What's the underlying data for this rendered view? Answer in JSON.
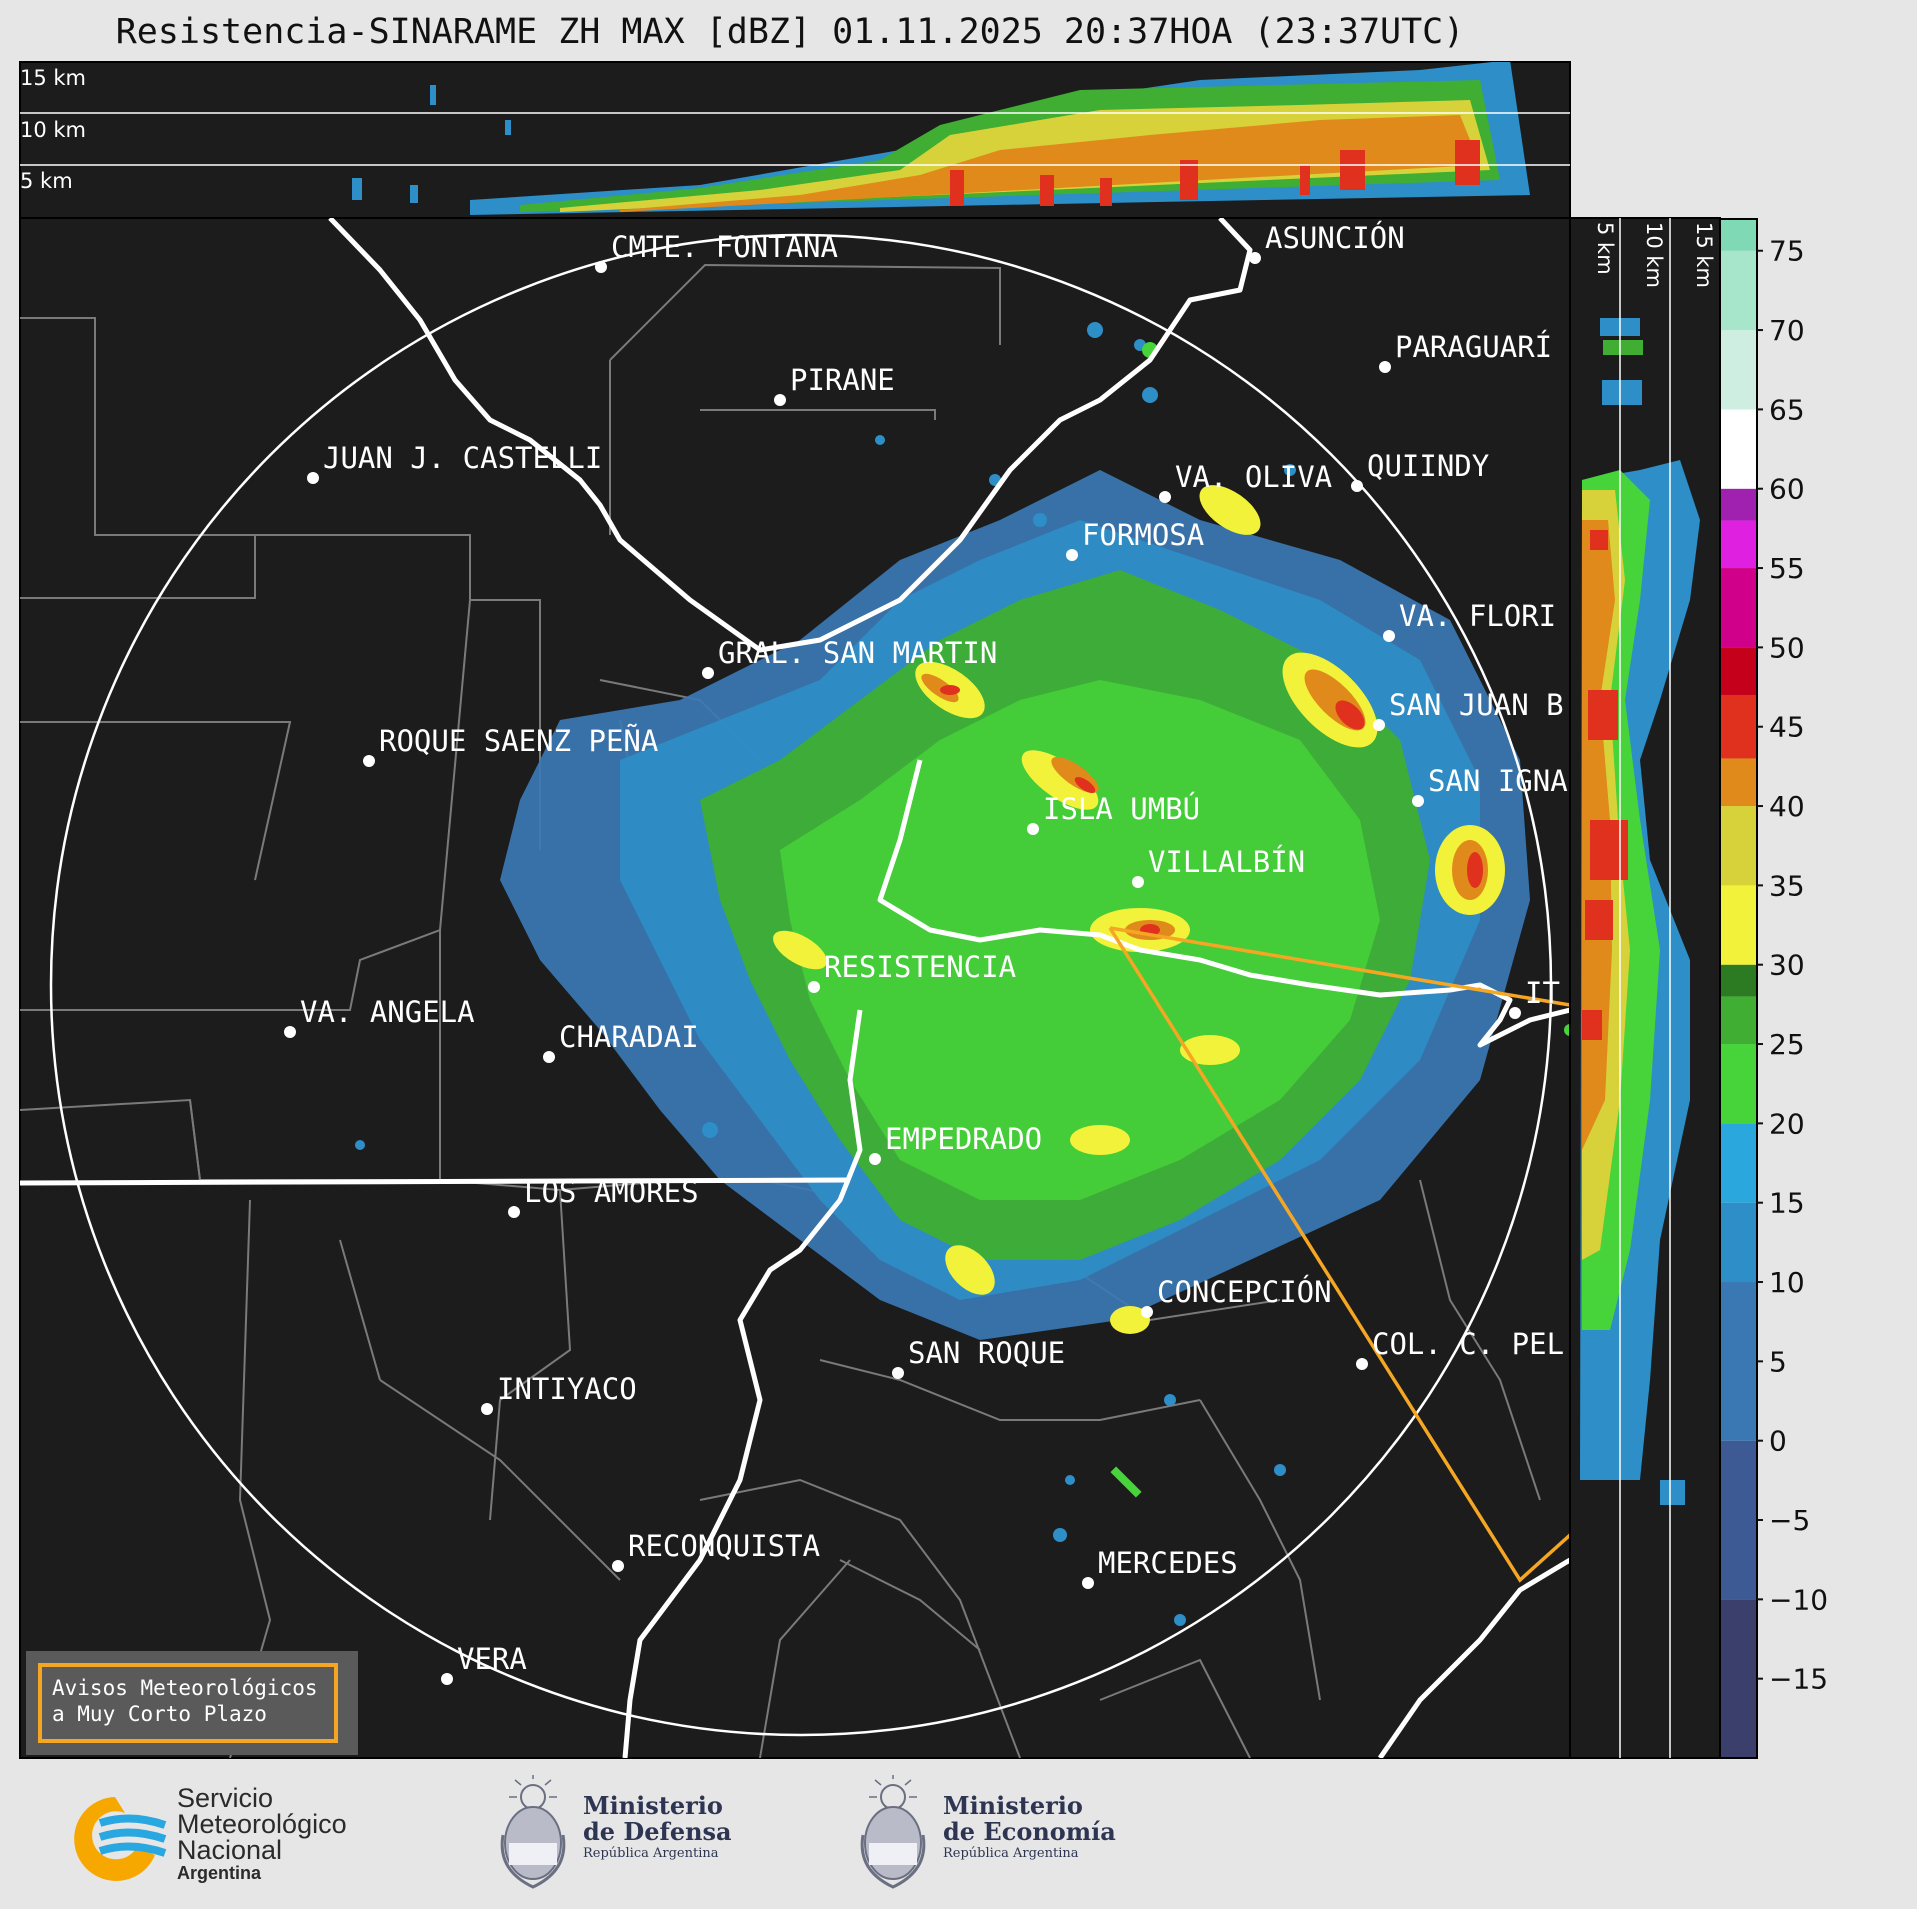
{
  "title": "Resistencia-SINARAME ZH MAX [dBZ] 01.11.2025 20:37HOA (23:37UTC)",
  "top_profile": {
    "height_labels": [
      "15 km",
      "10 km",
      "5 km"
    ]
  },
  "right_profile": {
    "height_labels": [
      "5 km",
      "10 km",
      "15 km"
    ]
  },
  "colorbar": {
    "unit": "dBZ",
    "ticks": [
      "75",
      "70",
      "65",
      "60",
      "55",
      "50",
      "45",
      "40",
      "35",
      "30",
      "25",
      "20",
      "15",
      "10",
      "5",
      "0",
      "−5",
      "−10",
      "−15"
    ],
    "tick_values": [
      75,
      70,
      65,
      60,
      55,
      50,
      45,
      40,
      35,
      30,
      25,
      20,
      15,
      10,
      5,
      0,
      -5,
      -10,
      -15
    ],
    "range": [
      -20,
      77
    ],
    "colors": {
      "-20": "#3b3f6b",
      "-10": "#3d5a94",
      "0": "#3a78b3",
      "10": "#2d8ec8",
      "15": "#2aa7dd",
      "20": "#46d43a",
      "25": "#3fae32",
      "28": "#2c7a22",
      "30": "#f2f23a",
      "35": "#d7d23a",
      "40": "#e08a1c",
      "43": "#e0301e",
      "47": "#c4001a",
      "50": "#d0008a",
      "55": "#e020e0",
      "58": "#a020b0",
      "60": "#ffffff",
      "65": "#cdeee0",
      "70": "#a8e6cc",
      "75": "#7fd9b4"
    }
  },
  "cities": [
    {
      "name": "CMTE. FONTANA"
    },
    {
      "name": "ASUNCIÓN"
    },
    {
      "name": "PARAGUARÍ"
    },
    {
      "name": "PIRANE"
    },
    {
      "name": "JUAN J. CASTELLI"
    },
    {
      "name": "VA. OLIVA"
    },
    {
      "name": "QUIINDY"
    },
    {
      "name": "FORMOSA"
    },
    {
      "name": "VA. FLORI"
    },
    {
      "name": "GRAL. SAN MARTIN"
    },
    {
      "name": "SAN JUAN B"
    },
    {
      "name": "ROQUE SAENZ PEÑA"
    },
    {
      "name": "SAN IGNA"
    },
    {
      "name": "ISLA UMBÚ"
    },
    {
      "name": "VILLALBÍN"
    },
    {
      "name": "RESISTENCIA"
    },
    {
      "name": "VA. ANGELA"
    },
    {
      "name": "CHARADAI"
    },
    {
      "name": "IT"
    },
    {
      "name": "EMPEDRADO"
    },
    {
      "name": "LOS AMORES"
    },
    {
      "name": "CONCEPCIÓN"
    },
    {
      "name": "SAN ROQUE"
    },
    {
      "name": "COL. C. PEL"
    },
    {
      "name": "INTIYACO"
    },
    {
      "name": "RECONQUISTA"
    },
    {
      "name": "MERCEDES"
    },
    {
      "name": "VERA"
    }
  ],
  "avisos": {
    "line1": "Avisos Meteorológicos",
    "line2": "a Muy Corto Plazo"
  },
  "logos": {
    "smn": {
      "line1": "Servicio",
      "line2": "Meteorológico",
      "line3": "Nacional",
      "line4": "Argentina"
    },
    "defensa": {
      "line1": "Ministerio",
      "line2": "de Defensa",
      "line3": "República Argentina"
    },
    "economia": {
      "line1": "Ministerio",
      "line2": "de Economía",
      "line3": "República Argentina"
    }
  }
}
